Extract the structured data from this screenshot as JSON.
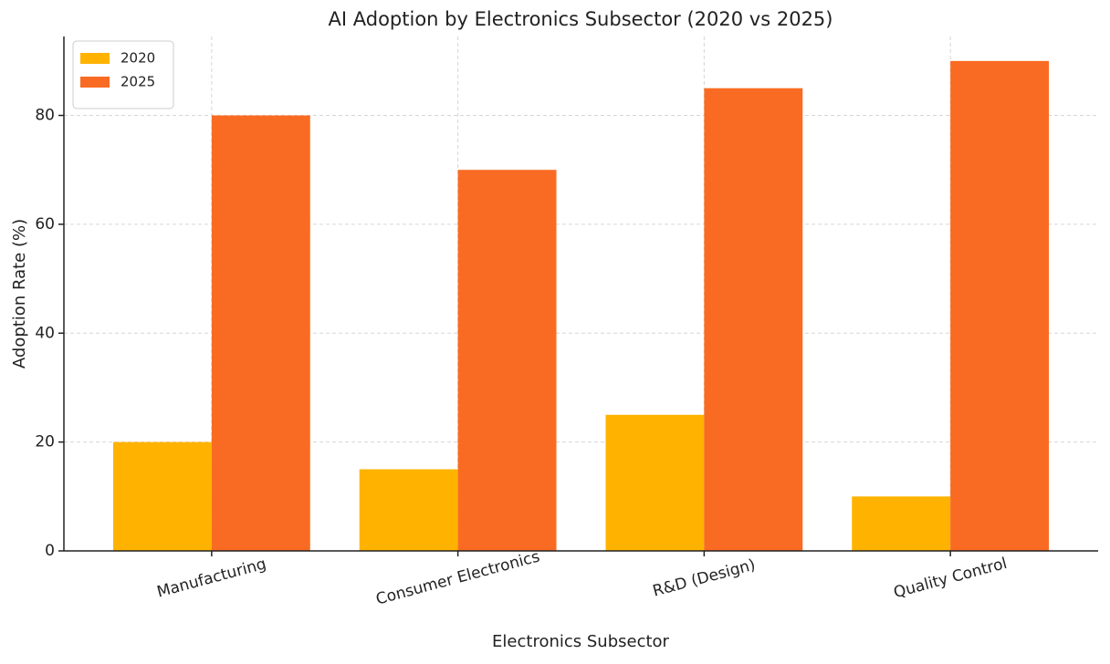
{
  "chart_data": {
    "type": "bar",
    "title": "AI Adoption by Electronics Subsector (2020 vs 2025)",
    "x_label": "Electronics Subsector",
    "y_label": "Adoption Rate (%)",
    "categories": [
      "Manufacturing",
      "Consumer Electronics",
      "R&D (Design)",
      "Quality Control"
    ],
    "series": [
      {
        "name": "2020",
        "color": "#ffb300",
        "values": [
          20,
          15,
          25,
          10
        ]
      },
      {
        "name": "2025",
        "color": "#f96b22",
        "values": [
          80,
          70,
          85,
          90
        ]
      }
    ],
    "ylim": [
      0,
      94.5
    ],
    "yticks": [
      0,
      20,
      40,
      60,
      80
    ],
    "grid": true,
    "legend": "upper left"
  }
}
